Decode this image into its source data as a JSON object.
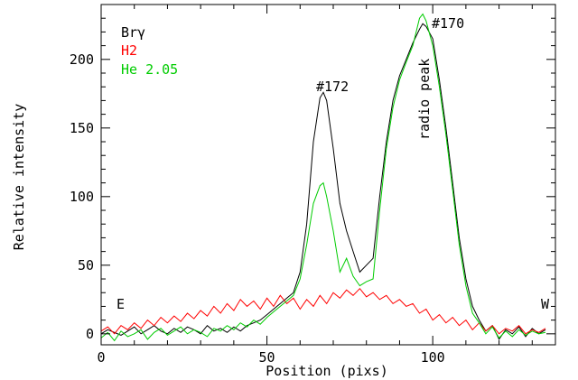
{
  "chart_data": {
    "type": "line",
    "xlabel": "Position (pixs)",
    "ylabel": "Relative intensity",
    "xlim": [
      0,
      137
    ],
    "ylim": [
      -8,
      240
    ],
    "xticks": [
      0,
      50,
      100
    ],
    "yticks": [
      0,
      50,
      100,
      150,
      200
    ],
    "legend_position": "top-left",
    "series": [
      {
        "name": "Brγ",
        "color": "#000000",
        "x": [
          0,
          2,
          4,
          6,
          8,
          10,
          12,
          14,
          16,
          18,
          20,
          22,
          24,
          26,
          28,
          30,
          32,
          34,
          36,
          38,
          40,
          42,
          44,
          46,
          48,
          50,
          52,
          54,
          56,
          58,
          60,
          62,
          64,
          66,
          67,
          68,
          70,
          72,
          74,
          76,
          78,
          80,
          82,
          84,
          86,
          88,
          90,
          92,
          94,
          96,
          97,
          98,
          100,
          102,
          104,
          106,
          108,
          110,
          112,
          114,
          116,
          118,
          120,
          122,
          124,
          126,
          128,
          130,
          132,
          134
        ],
        "y": [
          0,
          3,
          1,
          -1,
          2,
          5,
          0,
          3,
          6,
          2,
          0,
          4,
          1,
          5,
          3,
          0,
          6,
          2,
          4,
          1,
          5,
          2,
          6,
          8,
          10,
          14,
          18,
          22,
          26,
          30,
          45,
          80,
          140,
          172,
          176,
          170,
          135,
          95,
          75,
          60,
          45,
          50,
          55,
          100,
          140,
          170,
          188,
          200,
          212,
          222,
          226,
          224,
          215,
          185,
          150,
          110,
          70,
          40,
          20,
          10,
          2,
          6,
          -4,
          3,
          0,
          5,
          -2,
          4,
          0,
          3
        ]
      },
      {
        "name": "H2",
        "color": "#ff0000",
        "x": [
          0,
          2,
          4,
          6,
          8,
          10,
          12,
          14,
          16,
          18,
          20,
          22,
          24,
          26,
          28,
          30,
          32,
          34,
          36,
          38,
          40,
          42,
          44,
          46,
          48,
          50,
          52,
          54,
          56,
          58,
          60,
          62,
          64,
          66,
          68,
          70,
          72,
          74,
          76,
          78,
          80,
          82,
          84,
          86,
          88,
          90,
          92,
          94,
          96,
          98,
          100,
          102,
          104,
          106,
          108,
          110,
          112,
          114,
          116,
          118,
          120,
          122,
          124,
          126,
          128,
          130,
          132,
          134
        ],
        "y": [
          2,
          5,
          0,
          6,
          3,
          8,
          4,
          10,
          6,
          12,
          8,
          13,
          9,
          15,
          11,
          17,
          13,
          20,
          15,
          22,
          17,
          25,
          20,
          24,
          18,
          26,
          20,
          28,
          22,
          26,
          18,
          25,
          20,
          28,
          22,
          30,
          26,
          32,
          28,
          33,
          27,
          30,
          25,
          28,
          22,
          25,
          20,
          22,
          15,
          18,
          10,
          14,
          8,
          12,
          6,
          10,
          3,
          8,
          2,
          6,
          0,
          4,
          2,
          6,
          0,
          3,
          1,
          4
        ]
      },
      {
        "name": "He 2.05",
        "color": "#00cc00",
        "x": [
          0,
          2,
          4,
          6,
          8,
          10,
          12,
          14,
          16,
          18,
          20,
          22,
          24,
          26,
          28,
          30,
          32,
          34,
          36,
          38,
          40,
          42,
          44,
          46,
          48,
          50,
          52,
          54,
          56,
          58,
          60,
          62,
          64,
          66,
          67,
          68,
          70,
          72,
          74,
          76,
          78,
          80,
          82,
          84,
          86,
          88,
          90,
          92,
          94,
          96,
          97,
          98,
          100,
          102,
          104,
          106,
          108,
          110,
          112,
          114,
          116,
          118,
          120,
          122,
          124,
          126,
          128,
          130,
          132,
          134
        ],
        "y": [
          -3,
          1,
          -5,
          2,
          -2,
          0,
          3,
          -4,
          1,
          4,
          -1,
          2,
          5,
          0,
          3,
          1,
          -2,
          4,
          2,
          6,
          3,
          8,
          5,
          10,
          7,
          12,
          16,
          20,
          24,
          28,
          40,
          65,
          95,
          108,
          110,
          100,
          75,
          45,
          55,
          42,
          35,
          38,
          40,
          90,
          135,
          165,
          185,
          198,
          210,
          230,
          233,
          228,
          210,
          180,
          145,
          105,
          65,
          35,
          15,
          8,
          0,
          5,
          -3,
          2,
          -2,
          3,
          -1,
          2,
          0,
          1
        ]
      }
    ],
    "annotations": [
      "E",
      "W",
      "#172",
      "#170",
      "radio peak"
    ]
  }
}
